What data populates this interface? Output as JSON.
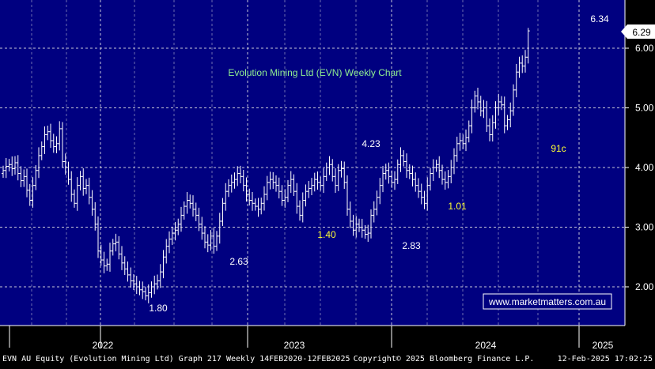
{
  "footer": {
    "left": "EVN AU Equity (Evolution Mining Ltd) Graph 217  Weekly 14FEB2020-12FEB2025",
    "center": "Copyright© 2025 Bloomberg Finance L.P.",
    "right": "12-Feb-2025 17:02:25"
  },
  "watermark": "www.marketmatters.com.au",
  "colors": {
    "background": "#000080",
    "grid": "#c8c8d8",
    "bar": "#ffffff",
    "title": "#90ee90",
    "annotation_white": "#ffffff",
    "annotation_yellow": "#ffff33"
  },
  "chart_data": {
    "type": "ohlc",
    "title": "Evolution Mining Ltd (EVN) Weekly Chart",
    "xlabel": "",
    "ylabel": "",
    "x_ticks": [
      "2022",
      "2023",
      "2024",
      "2025"
    ],
    "y_ticks": [
      2.0,
      3.0,
      4.0,
      5.0,
      6.0
    ],
    "ylim": [
      1.4,
      6.6
    ],
    "grid": true,
    "last_price": 6.29,
    "annotations": [
      {
        "text": "6.34",
        "week": 200,
        "value": 6.34,
        "color": "white"
      },
      {
        "text": "4.23",
        "week": 122,
        "value": 4.23,
        "color": "white"
      },
      {
        "text": "1.80",
        "week": 51,
        "value": 1.8,
        "color": "white"
      },
      {
        "text": "2.63",
        "week": 77,
        "value": 2.63,
        "color": "white"
      },
      {
        "text": "2.83",
        "week": 136,
        "value": 2.83,
        "color": "white"
      },
      {
        "text": "1.40",
        "week": 106,
        "value": 1.4,
        "color": "yellow"
      },
      {
        "text": "1.01",
        "week": 148,
        "value": 1.01,
        "color": "yellow"
      },
      {
        "text": "91c",
        "week": 183,
        "value": 0.91,
        "color": "yellow"
      }
    ],
    "closes": [
      3.95,
      4.02,
      4.05,
      3.98,
      4.08,
      3.9,
      3.78,
      3.85,
      3.62,
      3.45,
      3.7,
      3.95,
      4.2,
      4.35,
      4.55,
      4.6,
      4.45,
      4.35,
      4.4,
      4.65,
      4.1,
      4.0,
      3.8,
      3.55,
      3.4,
      3.7,
      3.85,
      3.65,
      3.7,
      3.5,
      3.3,
      3.05,
      2.6,
      2.45,
      2.35,
      2.38,
      2.6,
      2.72,
      2.75,
      2.55,
      2.4,
      2.3,
      2.2,
      2.1,
      2.05,
      2.0,
      1.95,
      1.92,
      1.85,
      1.9,
      2.0,
      2.05,
      2.1,
      2.25,
      2.5,
      2.68,
      2.8,
      2.9,
      2.95,
      3.05,
      3.2,
      3.35,
      3.45,
      3.4,
      3.3,
      3.2,
      3.05,
      2.9,
      2.75,
      2.7,
      2.85,
      2.68,
      2.85,
      3.1,
      3.4,
      3.6,
      3.7,
      3.75,
      3.8,
      3.9,
      3.85,
      3.7,
      3.55,
      3.45,
      3.4,
      3.35,
      3.3,
      3.4,
      3.55,
      3.75,
      3.8,
      3.75,
      3.7,
      3.6,
      3.45,
      3.5,
      3.7,
      3.8,
      3.6,
      3.35,
      3.2,
      3.45,
      3.6,
      3.65,
      3.7,
      3.8,
      3.75,
      3.7,
      3.85,
      4.0,
      4.05,
      3.85,
      3.7,
      3.95,
      3.98,
      3.75,
      3.3,
      3.1,
      2.95,
      3.05,
      3.0,
      2.95,
      2.88,
      2.9,
      3.2,
      3.3,
      3.5,
      3.7,
      3.9,
      3.95,
      3.85,
      3.75,
      3.8,
      4.05,
      4.2,
      4.1,
      3.95,
      3.9,
      3.8,
      3.7,
      3.6,
      3.5,
      3.4,
      3.7,
      3.9,
      4.0,
      4.05,
      3.95,
      3.8,
      3.75,
      3.85,
      4.0,
      4.2,
      4.4,
      4.45,
      4.4,
      4.5,
      4.7,
      5.0,
      5.2,
      5.1,
      4.95,
      5.0,
      4.7,
      4.55,
      4.75,
      5.0,
      5.1,
      5.05,
      4.7,
      4.8,
      4.95,
      5.3,
      5.6,
      5.75,
      5.7,
      5.85,
      6.29
    ]
  }
}
